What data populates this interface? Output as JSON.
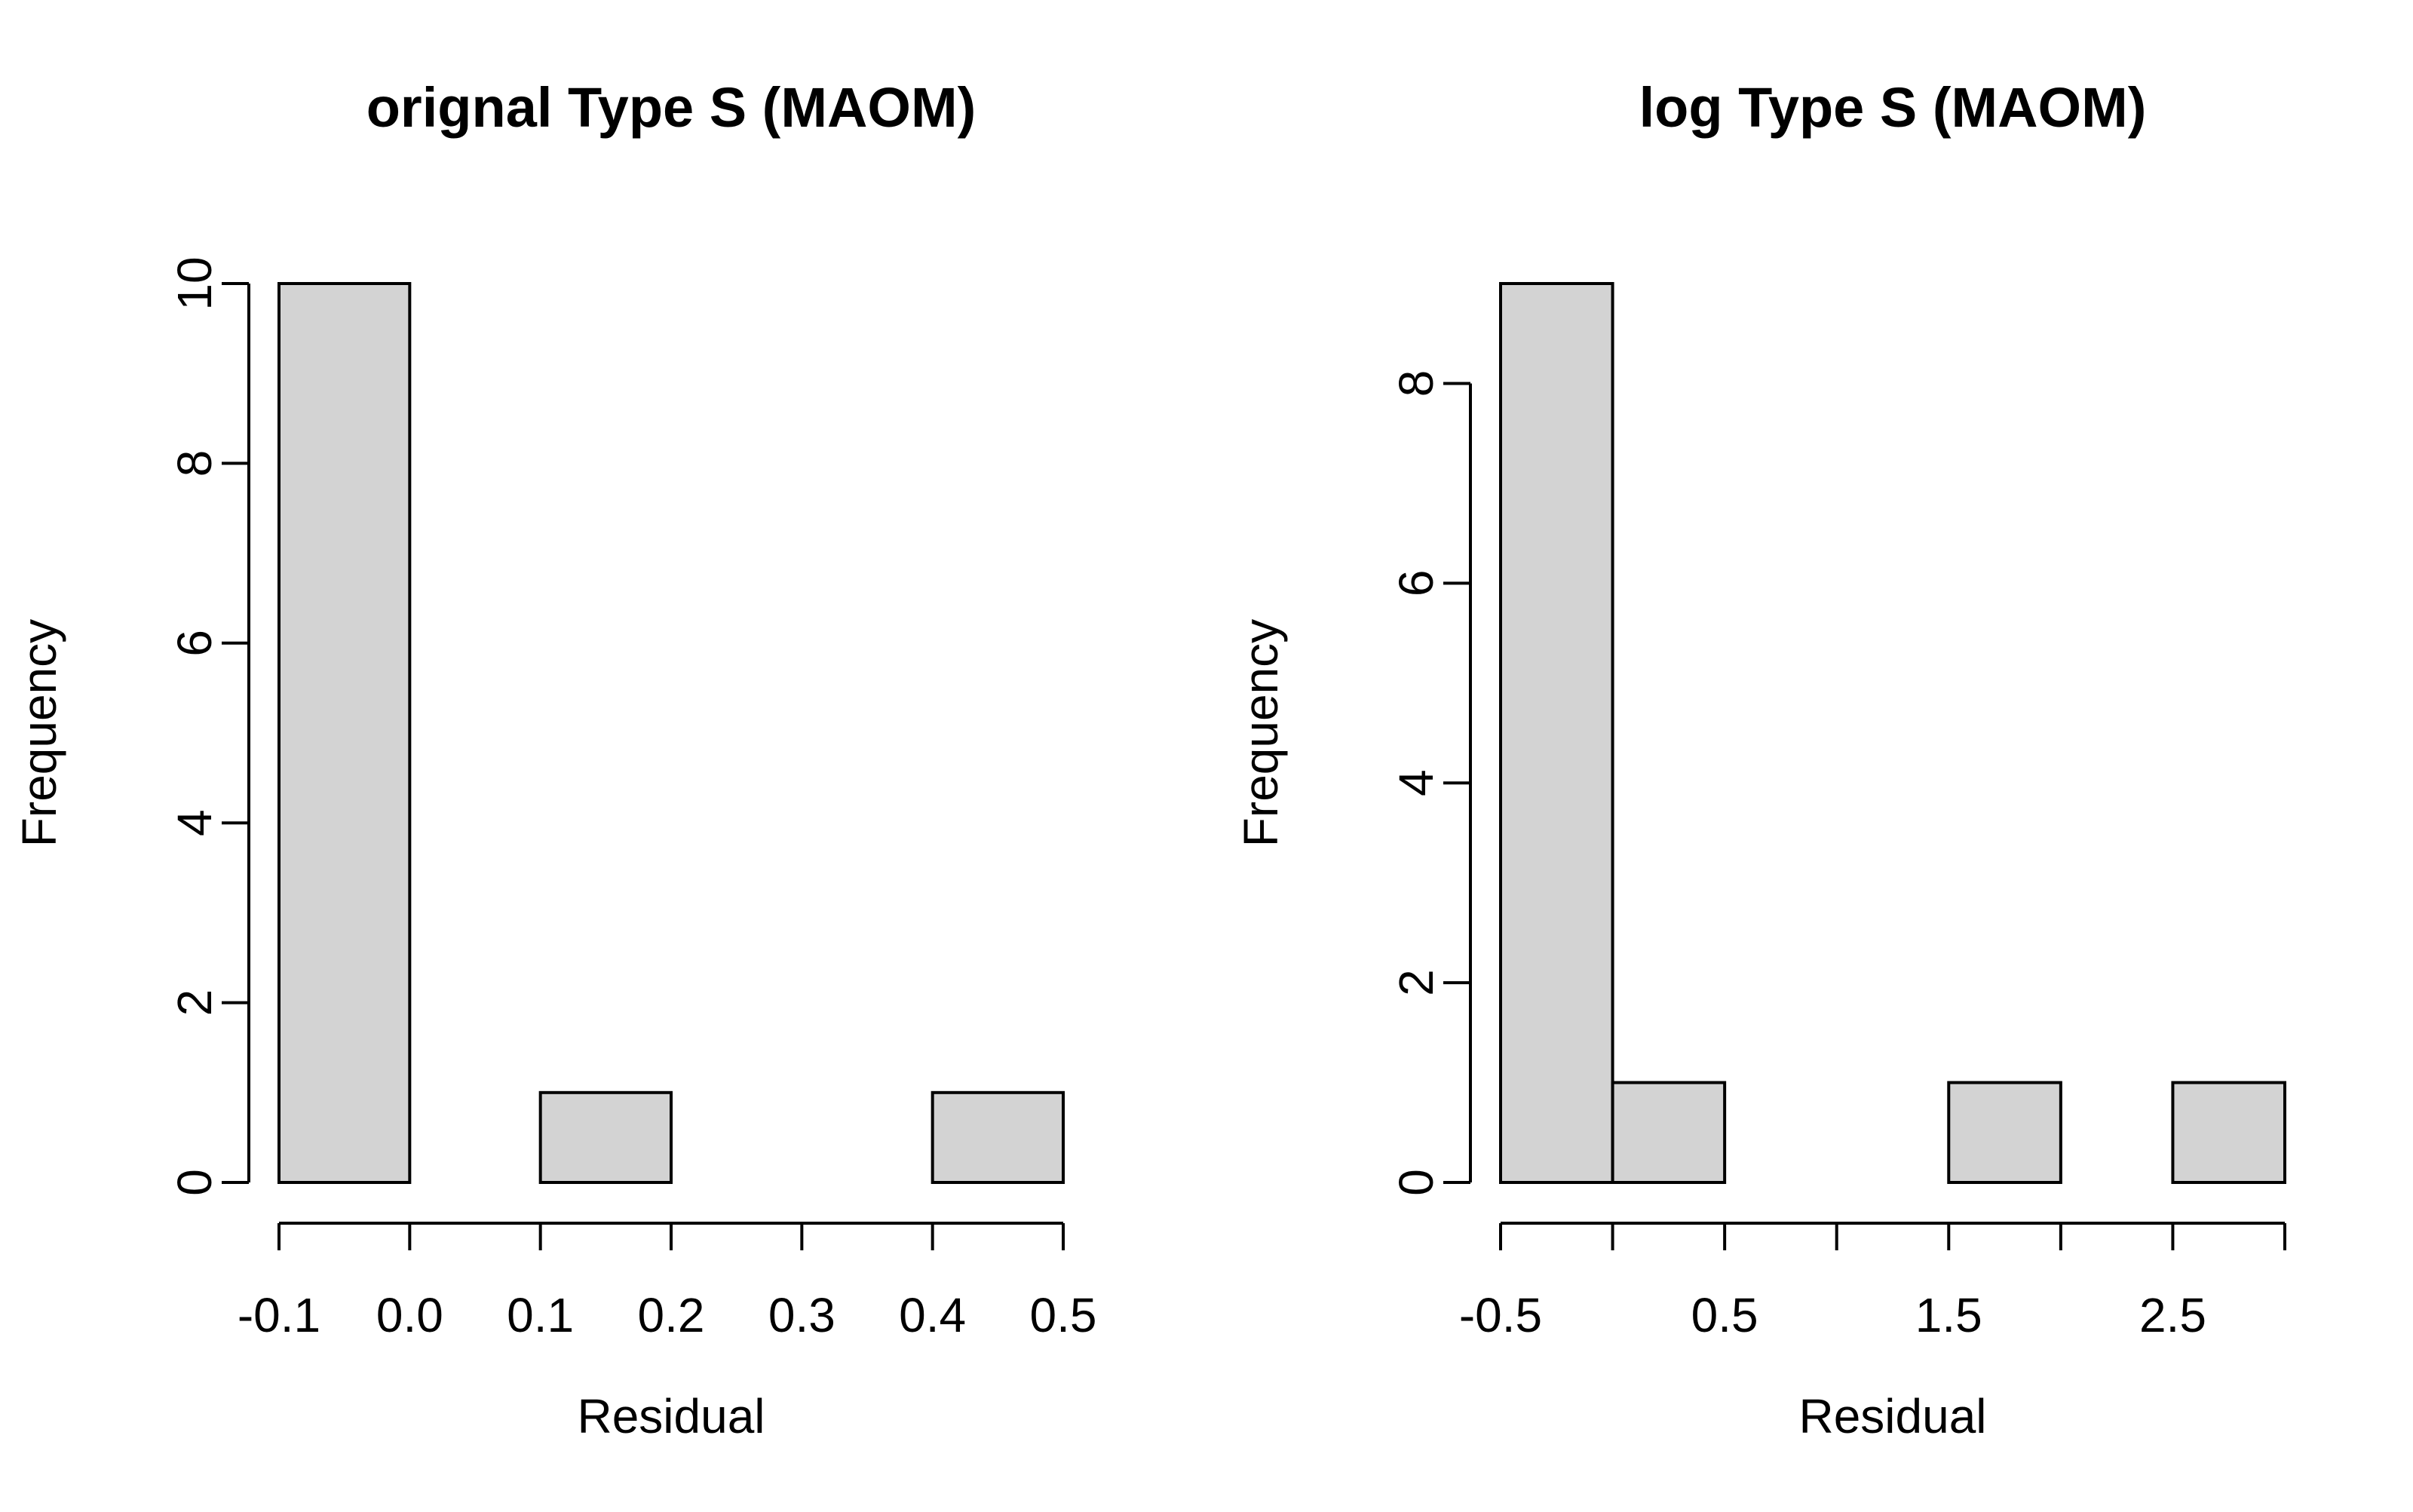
{
  "chart_data": [
    {
      "type": "bar",
      "title": "orignal Type S (MAOM)",
      "xlabel": "Residual",
      "ylabel": "Frequency",
      "bin_edges": [
        -0.1,
        0.0,
        0.1,
        0.2,
        0.3,
        0.4,
        0.5
      ],
      "values": [
        10,
        0,
        1,
        0,
        0,
        1
      ],
      "xlim": [
        -0.1,
        0.5
      ],
      "ylim": [
        0,
        10
      ],
      "x_ticks": [
        -0.1,
        0.0,
        0.1,
        0.2,
        0.3,
        0.4,
        0.5
      ],
      "x_tick_labels": [
        "-0.1",
        "0.0",
        "0.1",
        "0.2",
        "0.3",
        "0.4",
        "0.5"
      ],
      "y_ticks": [
        0,
        2,
        4,
        6,
        8,
        10
      ],
      "y_tick_labels": [
        "0",
        "2",
        "4",
        "6",
        "8",
        "10"
      ],
      "bar_color": "#d3d3d3",
      "grid": false
    },
    {
      "type": "bar",
      "title": "log Type S (MAOM)",
      "xlabel": "Residual",
      "ylabel": "Frequency",
      "bin_edges": [
        -0.5,
        0.0,
        0.5,
        1.0,
        1.5,
        2.0,
        2.5,
        3.0
      ],
      "values": [
        9,
        1,
        0,
        0,
        1,
        0,
        1
      ],
      "xlim": [
        -0.5,
        3.0
      ],
      "ylim": [
        0,
        9
      ],
      "x_ticks": [
        -0.5,
        0.0,
        0.5,
        1.0,
        1.5,
        2.0,
        2.5,
        3.0
      ],
      "x_tick_labels": [
        "-0.5",
        "",
        "0.5",
        "",
        "1.5",
        "",
        "2.5",
        ""
      ],
      "y_ticks": [
        0,
        2,
        4,
        6,
        8
      ],
      "y_tick_labels": [
        "0",
        "2",
        "4",
        "6",
        "8"
      ],
      "bar_color": "#d3d3d3",
      "grid": false
    }
  ]
}
